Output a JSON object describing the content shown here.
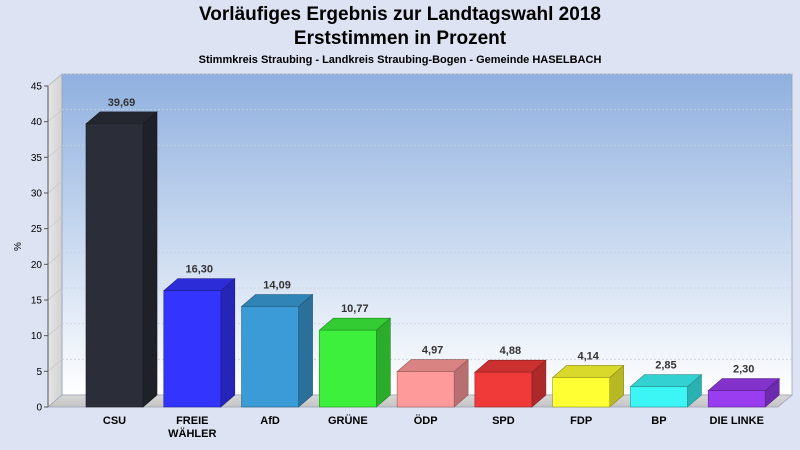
{
  "title_line1": "Vorläufiges Ergebnis zur Landtagswahl 2018",
  "title_line2": "Erststimmen in Prozent",
  "subtitle": "Stimmkreis Straubing - Landkreis Straubing-Bogen - Gemeinde HASELBACH",
  "chart_data": {
    "type": "bar",
    "ylabel": "%",
    "ylim": [
      0,
      45
    ],
    "yticks": [
      0,
      5,
      10,
      15,
      20,
      25,
      30,
      35,
      40,
      45
    ],
    "grid": true,
    "categories": [
      [
        "CSU"
      ],
      [
        "FREIE",
        "WÄHLER"
      ],
      [
        "AfD"
      ],
      [
        "GRÜNE"
      ],
      [
        "ÖDP"
      ],
      [
        "SPD"
      ],
      [
        "FDP"
      ],
      [
        "BP"
      ],
      [
        "DIE LINKE"
      ]
    ],
    "values": [
      39.69,
      16.3,
      14.09,
      10.77,
      4.97,
      4.88,
      4.14,
      2.85,
      2.3
    ],
    "value_labels": [
      "39,69",
      "16,30",
      "14,09",
      "10,77",
      "4,97",
      "4,88",
      "4,14",
      "2,85",
      "2,30"
    ],
    "colors": [
      "#2b2e38",
      "#3434ff",
      "#3a9bd6",
      "#3cf03c",
      "#ff9a9a",
      "#f03a3a",
      "#ffff33",
      "#3cf6f6",
      "#9a3cf0"
    ]
  }
}
